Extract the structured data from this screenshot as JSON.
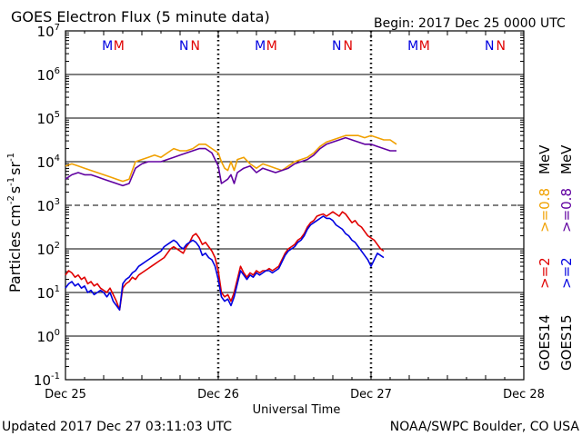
{
  "header": {
    "title": "GOES Electron Flux (5 minute data)",
    "begin": "Begin: 2017 Dec 25 0000 UTC"
  },
  "footer": {
    "updated": "Updated 2017 Dec 27 03:11:03 UTC",
    "credit": "NOAA/SWPC Boulder, CO USA"
  },
  "colors": {
    "goes14_2mev": "#e00000",
    "goes15_2mev": "#0000e0",
    "goes14_08mev": "#f0a000",
    "goes15_08mev": "#6000a0"
  },
  "chart_data": {
    "type": "line",
    "title": "GOES Electron Flux (5 minute data)",
    "xlabel": "Universal Time",
    "ylabel_main": "Particles cm",
    "ylabel_exp1": "-2",
    "ylabel_mid": "s",
    "ylabel_exp2": "-1",
    "ylabel_end": "sr",
    "ylabel_exp3": "-1",
    "y_scale": "log",
    "ylim": [
      -1,
      7
    ],
    "xlim": [
      0,
      72
    ],
    "y_ticks": [
      {
        "base": "10",
        "exp": "7",
        "log": 7
      },
      {
        "base": "10",
        "exp": "6",
        "log": 6
      },
      {
        "base": "10",
        "exp": "5",
        "log": 5
      },
      {
        "base": "10",
        "exp": "4",
        "log": 4
      },
      {
        "base": "10",
        "exp": "3",
        "log": 3
      },
      {
        "base": "10",
        "exp": "2",
        "log": 2
      },
      {
        "base": "10",
        "exp": "1",
        "log": 1
      },
      {
        "base": "10",
        "exp": "0",
        "log": 0
      },
      {
        "base": "10",
        "exp": "-1",
        "log": -1
      }
    ],
    "x_ticks": [
      {
        "label": "Dec 25",
        "hour": 0
      },
      {
        "label": "Dec 26",
        "hour": 24
      },
      {
        "label": "Dec 27",
        "hour": 48
      },
      {
        "label": "Dec 28",
        "hour": 72
      }
    ],
    "threshold_log": 3,
    "markers": [
      {
        "hour": 6.6,
        "text": "M",
        "sat": "goes15"
      },
      {
        "hour": 8.4,
        "text": "M",
        "sat": "goes14"
      },
      {
        "hour": 18.6,
        "text": "N",
        "sat": "goes15"
      },
      {
        "hour": 20.4,
        "text": "N",
        "sat": "goes14"
      },
      {
        "hour": 30.6,
        "text": "M",
        "sat": "goes15"
      },
      {
        "hour": 32.4,
        "text": "M",
        "sat": "goes14"
      },
      {
        "hour": 42.6,
        "text": "N",
        "sat": "goes15"
      },
      {
        "hour": 44.4,
        "text": "N",
        "sat": "goes14"
      },
      {
        "hour": 54.6,
        "text": "M",
        "sat": "goes15"
      },
      {
        "hour": 56.4,
        "text": "M",
        "sat": "goes14"
      },
      {
        "hour": 66.6,
        "text": "N",
        "sat": "goes15"
      },
      {
        "hour": 68.4,
        "text": "N",
        "sat": "goes14"
      }
    ],
    "legend": {
      "goes14": "GOES14",
      "goes15": "GOES15",
      "ge2": ">=2",
      "ge08": ">=0.8",
      "unit": "MeV"
    },
    "series": [
      {
        "name": "GOES14 >=2 MeV",
        "key": "goes14_2mev",
        "x": [
          0,
          0.5,
          1,
          1.5,
          2,
          2.5,
          3,
          3.5,
          4,
          4.5,
          5,
          5.5,
          6,
          6.5,
          7,
          7.5,
          8,
          8.5,
          9,
          9.5,
          10,
          10.5,
          11,
          11.5,
          12,
          12.5,
          13,
          13.5,
          14,
          14.5,
          15,
          15.5,
          16,
          16.5,
          17,
          17.5,
          18,
          18.5,
          19,
          19.5,
          20,
          20.5,
          21,
          21.5,
          22,
          22.5,
          23,
          23.5,
          24,
          24.5,
          25,
          25.5,
          26,
          26.5,
          27,
          27.5,
          28,
          28.5,
          29,
          29.5,
          30,
          30.5,
          31,
          31.5,
          32,
          32.5,
          33,
          33.5,
          34,
          34.5,
          35,
          35.5,
          36,
          36.5,
          37,
          37.5,
          38,
          38.5,
          39,
          39.5,
          40,
          40.5,
          41,
          41.5,
          42,
          42.5,
          43,
          43.5,
          44,
          44.5,
          45,
          45.5,
          46,
          46.5,
          47,
          47.5,
          48,
          48.5,
          49,
          49.5,
          50,
          50.5,
          51,
          51.5,
          52
        ],
        "log": [
          1.4,
          1.5,
          1.45,
          1.35,
          1.4,
          1.3,
          1.35,
          1.2,
          1.25,
          1.15,
          1.2,
          1.1,
          1.05,
          1.0,
          1.1,
          0.95,
          0.8,
          0.6,
          1.1,
          1.2,
          1.25,
          1.35,
          1.3,
          1.4,
          1.45,
          1.5,
          1.55,
          1.6,
          1.65,
          1.7,
          1.75,
          1.8,
          1.9,
          2.0,
          2.05,
          2.0,
          1.95,
          1.9,
          2.05,
          2.15,
          2.3,
          2.35,
          2.25,
          2.1,
          2.15,
          2.05,
          1.95,
          1.8,
          1.5,
          1.0,
          0.9,
          0.95,
          0.8,
          1.0,
          1.3,
          1.6,
          1.45,
          1.35,
          1.45,
          1.4,
          1.5,
          1.45,
          1.5,
          1.5,
          1.55,
          1.5,
          1.55,
          1.6,
          1.75,
          1.9,
          2.0,
          2.05,
          2.1,
          2.2,
          2.25,
          2.35,
          2.5,
          2.6,
          2.65,
          2.75,
          2.78,
          2.8,
          2.75,
          2.8,
          2.85,
          2.8,
          2.75,
          2.85,
          2.8,
          2.7,
          2.6,
          2.65,
          2.55,
          2.5,
          2.4,
          2.3,
          2.25,
          2.2,
          2.1,
          2.0,
          1.95
        ]
      },
      {
        "name": "GOES15 >=2 MeV",
        "key": "goes15_2mev",
        "x": [
          0,
          0.5,
          1,
          1.5,
          2,
          2.5,
          3,
          3.5,
          4,
          4.5,
          5,
          5.5,
          6,
          6.5,
          7,
          7.5,
          8,
          8.5,
          9,
          9.5,
          10,
          10.5,
          11,
          11.5,
          12,
          12.5,
          13,
          13.5,
          14,
          14.5,
          15,
          15.5,
          16,
          16.5,
          17,
          17.5,
          18,
          18.5,
          19,
          19.5,
          20,
          20.5,
          21,
          21.5,
          22,
          22.5,
          23,
          23.5,
          24,
          24.5,
          25,
          25.5,
          26,
          26.5,
          27,
          27.5,
          28,
          28.5,
          29,
          29.5,
          30,
          30.5,
          31,
          31.5,
          32,
          32.5,
          33,
          33.5,
          34,
          34.5,
          35,
          35.5,
          36,
          36.5,
          37,
          37.5,
          38,
          38.5,
          39,
          39.5,
          40,
          40.5,
          41,
          41.5,
          42,
          42.5,
          43,
          43.5,
          44,
          44.5,
          45,
          45.5,
          46,
          46.5,
          47,
          47.5,
          48,
          48.5,
          49,
          49.5,
          50,
          50.5,
          51,
          51.5,
          52
        ],
        "log": [
          1.1,
          1.2,
          1.25,
          1.15,
          1.2,
          1.1,
          1.15,
          1.0,
          1.05,
          0.95,
          1.0,
          1.05,
          1.0,
          0.9,
          1.0,
          0.8,
          0.7,
          0.6,
          1.2,
          1.3,
          1.35,
          1.45,
          1.5,
          1.6,
          1.65,
          1.7,
          1.75,
          1.8,
          1.85,
          1.9,
          1.95,
          2.05,
          2.1,
          2.15,
          2.2,
          2.15,
          2.05,
          2.0,
          2.1,
          2.15,
          2.2,
          2.15,
          2.05,
          1.85,
          1.9,
          1.8,
          1.75,
          1.6,
          1.3,
          0.9,
          0.8,
          0.85,
          0.7,
          0.9,
          1.2,
          1.5,
          1.4,
          1.3,
          1.4,
          1.35,
          1.45,
          1.4,
          1.45,
          1.5,
          1.5,
          1.45,
          1.5,
          1.55,
          1.7,
          1.85,
          1.95,
          2.0,
          2.05,
          2.15,
          2.2,
          2.3,
          2.45,
          2.55,
          2.6,
          2.65,
          2.7,
          2.75,
          2.7,
          2.7,
          2.65,
          2.55,
          2.5,
          2.45,
          2.35,
          2.3,
          2.2,
          2.15,
          2.05,
          1.95,
          1.85,
          1.75,
          1.6,
          1.75,
          1.9,
          1.85,
          1.8
        ]
      },
      {
        "name": "GOES14 >=0.8 MeV",
        "key": "goes14_08mev",
        "x": [
          0,
          1,
          2,
          3,
          4,
          5,
          6,
          7,
          8,
          9,
          10,
          11,
          12,
          13,
          14,
          15,
          16,
          17,
          18,
          19,
          20,
          21,
          22,
          23,
          24,
          24.5,
          25,
          25.5,
          26,
          26.5,
          27,
          28,
          29,
          30,
          31,
          32,
          33,
          34,
          35,
          36,
          37,
          38,
          39,
          40,
          41,
          42,
          43,
          44,
          45,
          46,
          47,
          48,
          49,
          50,
          51,
          52
        ],
        "log": [
          3.9,
          3.95,
          3.9,
          3.85,
          3.8,
          3.75,
          3.7,
          3.65,
          3.6,
          3.55,
          3.6,
          4.0,
          4.05,
          4.1,
          4.15,
          4.1,
          4.2,
          4.3,
          4.25,
          4.25,
          4.3,
          4.4,
          4.4,
          4.3,
          4.2,
          4.0,
          3.85,
          3.8,
          4.0,
          3.8,
          4.05,
          4.1,
          3.95,
          3.85,
          3.95,
          3.9,
          3.85,
          3.8,
          3.9,
          4.0,
          4.05,
          4.1,
          4.2,
          4.35,
          4.45,
          4.5,
          4.55,
          4.6,
          4.6,
          4.6,
          4.55,
          4.6,
          4.55,
          4.5,
          4.5,
          4.4
        ]
      },
      {
        "name": "GOES15 >=0.8 MeV",
        "key": "goes15_08mev",
        "x": [
          0,
          1,
          2,
          3,
          4,
          5,
          6,
          7,
          8,
          9,
          10,
          11,
          12,
          13,
          14,
          15,
          16,
          17,
          18,
          19,
          20,
          21,
          22,
          23,
          24,
          24.5,
          25,
          25.5,
          26,
          26.5,
          27,
          28,
          29,
          30,
          31,
          32,
          33,
          34,
          35,
          36,
          37,
          38,
          39,
          40,
          41,
          42,
          43,
          44,
          45,
          46,
          47,
          48,
          49,
          50,
          51,
          52
        ],
        "log": [
          3.6,
          3.7,
          3.75,
          3.7,
          3.7,
          3.65,
          3.6,
          3.55,
          3.5,
          3.45,
          3.5,
          3.85,
          3.95,
          4.0,
          4.0,
          4.0,
          4.05,
          4.1,
          4.15,
          4.2,
          4.25,
          4.3,
          4.3,
          4.2,
          3.9,
          3.5,
          3.55,
          3.6,
          3.7,
          3.5,
          3.75,
          3.85,
          3.9,
          3.75,
          3.85,
          3.8,
          3.75,
          3.8,
          3.85,
          3.95,
          4.0,
          4.05,
          4.15,
          4.3,
          4.4,
          4.45,
          4.5,
          4.55,
          4.5,
          4.45,
          4.4,
          4.4,
          4.35,
          4.3,
          4.25,
          4.25
        ]
      }
    ]
  }
}
